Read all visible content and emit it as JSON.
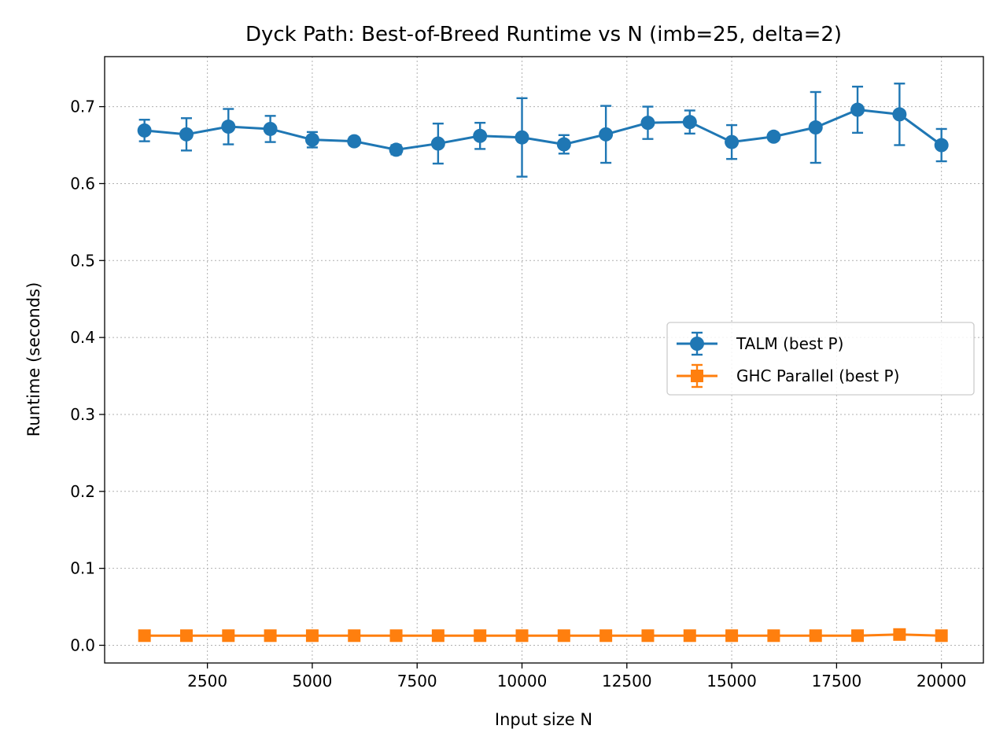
{
  "chart_data": {
    "type": "line",
    "title": "Dyck Path: Best-of-Breed Runtime vs N  (imb=25, delta=2)",
    "xlabel": "Input size N",
    "ylabel": "Runtime (seconds)",
    "xlim": [
      50,
      21000
    ],
    "ylim": [
      -0.023,
      0.765
    ],
    "xticks": [
      2500,
      5000,
      7500,
      10000,
      12500,
      15000,
      17500,
      20000
    ],
    "yticks": [
      0.0,
      0.1,
      0.2,
      0.3,
      0.4,
      0.5,
      0.6,
      0.7
    ],
    "grid": true,
    "legend_position": "center-right",
    "x": [
      1000,
      2000,
      3000,
      4000,
      5000,
      6000,
      7000,
      8000,
      9000,
      10000,
      11000,
      12000,
      13000,
      14000,
      15000,
      16000,
      17000,
      18000,
      19000,
      20000
    ],
    "series": [
      {
        "name": "TALM (best P)",
        "color": "#1f77b4",
        "marker": "circle",
        "values": [
          0.669,
          0.664,
          0.674,
          0.671,
          0.657,
          0.655,
          0.644,
          0.652,
          0.662,
          0.66,
          0.651,
          0.664,
          0.679,
          0.68,
          0.654,
          0.661,
          0.673,
          0.696,
          0.69,
          0.65
        ],
        "errors": [
          0.014,
          0.021,
          0.023,
          0.017,
          0.01,
          0.005,
          0.006,
          0.026,
          0.017,
          0.051,
          0.012,
          0.037,
          0.021,
          0.015,
          0.022,
          0.004,
          0.046,
          0.03,
          0.04,
          0.021
        ]
      },
      {
        "name": "GHC Parallel (best P)",
        "color": "#ff7f0e",
        "marker": "square",
        "values": [
          0.0125,
          0.0125,
          0.0125,
          0.0125,
          0.0125,
          0.0125,
          0.0125,
          0.0125,
          0.0125,
          0.0125,
          0.0125,
          0.0125,
          0.0125,
          0.0125,
          0.0125,
          0.0125,
          0.0125,
          0.0125,
          0.014,
          0.0125
        ],
        "errors": [
          0.0004,
          0.0004,
          0.0004,
          0.0004,
          0.0004,
          0.0004,
          0.0004,
          0.0004,
          0.0004,
          0.0004,
          0.0004,
          0.0004,
          0.0004,
          0.0004,
          0.0004,
          0.0004,
          0.0004,
          0.0004,
          0.0015,
          0.0004
        ]
      }
    ]
  }
}
